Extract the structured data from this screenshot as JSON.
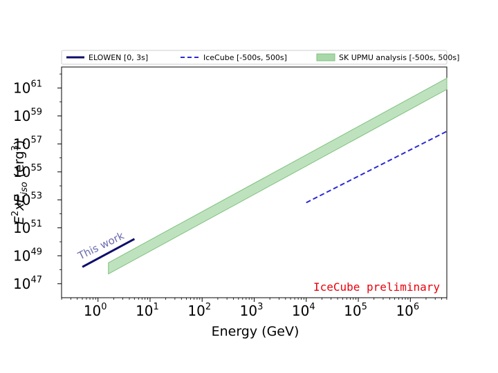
{
  "chart_data": {
    "type": "line",
    "title": "",
    "xlabel": "Energy (GeV)",
    "ylabel": {
      "base": "E",
      "sup": "2",
      "mid": "xE",
      "sub": "iso",
      "unit_open": " (erg",
      "unit_sup": "3",
      "unit_close": ")"
    },
    "xscale": "log",
    "yscale": "log",
    "xlim_log10": [
      -0.7,
      6.7
    ],
    "ylim_log10": [
      46,
      62.5
    ],
    "x_ticks": [
      {
        "base": "10",
        "exp": "0",
        "log": 0
      },
      {
        "base": "10",
        "exp": "1",
        "log": 1
      },
      {
        "base": "10",
        "exp": "2",
        "log": 2
      },
      {
        "base": "10",
        "exp": "3",
        "log": 3
      },
      {
        "base": "10",
        "exp": "4",
        "log": 4
      },
      {
        "base": "10",
        "exp": "5",
        "log": 5
      },
      {
        "base": "10",
        "exp": "6",
        "log": 6
      }
    ],
    "y_ticks": [
      {
        "base": "10",
        "exp": "47",
        "log": 47
      },
      {
        "base": "10",
        "exp": "49",
        "log": 49
      },
      {
        "base": "10",
        "exp": "51",
        "log": 51
      },
      {
        "base": "10",
        "exp": "53",
        "log": 53
      },
      {
        "base": "10",
        "exp": "55",
        "log": 55
      },
      {
        "base": "10",
        "exp": "57",
        "log": 57
      },
      {
        "base": "10",
        "exp": "59",
        "log": 59
      },
      {
        "base": "10",
        "exp": "61",
        "log": 61
      }
    ],
    "series": [
      {
        "name": "ELOWEN [0, 3s]",
        "style": "solid",
        "color": "#0d0d6b",
        "x_log10": [
          -0.3,
          0.7
        ],
        "y_log10": [
          48.2,
          50.2
        ]
      },
      {
        "name": "IceCube [-500s, 500s]",
        "style": "dashed",
        "color": "#2a2ad0",
        "x_log10": [
          4.0,
          6.7
        ],
        "y_log10": [
          52.8,
          57.9
        ]
      },
      {
        "name": "SK UPMU analysis [-500s, 500s]",
        "style": "band",
        "color": "#a8d8a8",
        "x_log10": [
          0.2,
          6.7
        ],
        "y_low_log10": [
          47.7,
          60.9
        ],
        "y_high_log10": [
          48.5,
          61.7
        ]
      }
    ],
    "legend_position": "top",
    "annotations": [
      {
        "text": "This work",
        "color": "#6b6bb0"
      },
      {
        "text": "IceCube preliminary",
        "color": "#e8000b"
      }
    ]
  }
}
